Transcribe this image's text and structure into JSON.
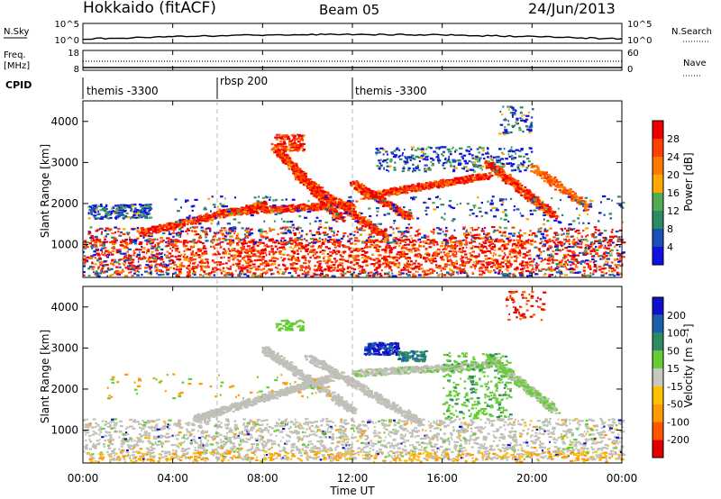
{
  "header": {
    "station": "Hokkaido (fitACF)",
    "beam": "Beam 05",
    "date": "24/Jun/2013"
  },
  "top_panels": {
    "nsky": {
      "label": "N.Sky",
      "ticks": [
        "10^5",
        "10^0"
      ]
    },
    "nsearch": {
      "label": "N.Search",
      "ticks": [
        "10^5",
        "10^0"
      ]
    },
    "freq": {
      "label": "Freq.",
      "unit": "[MHz]",
      "ticks": [
        "18",
        "8"
      ]
    },
    "nave": {
      "label": "Nave",
      "ticks": [
        "60",
        "0"
      ]
    },
    "cpid": {
      "label": "CPID",
      "segments": [
        "themis -3300",
        "rbsp 200",
        "themis -3300"
      ]
    }
  },
  "x_axis": {
    "label": "Time UT",
    "ticks": [
      "00:00",
      "04:00",
      "08:00",
      "12:00",
      "16:00",
      "20:00",
      "00:00"
    ]
  },
  "colors": {
    "power": [
      "#1010e0",
      "#1c50b8",
      "#2e8a63",
      "#52aa52",
      "#ffa800",
      "#ff7a00",
      "#ff4000",
      "#ef0000"
    ],
    "velocity": [
      "#e00000",
      "#ff5500",
      "#ff9a00",
      "#ffc000",
      "#c8c8c0",
      "#66cc33",
      "#2e8a63",
      "#1a5faa",
      "#1010c8"
    ],
    "ground": "#c0c0b8"
  },
  "chart_data": [
    {
      "type": "heatmap",
      "title": "Power",
      "ylabel": "Slant Range [km]",
      "yticks": [
        "1000",
        "2000",
        "3000",
        "4000"
      ],
      "ylim": [
        200,
        4500
      ],
      "xlim_hours": [
        0,
        24
      ],
      "colorbar": {
        "label": "Power [dB]",
        "ticks": [
          "28",
          "24",
          "20",
          "16",
          "12",
          "8",
          "4"
        ],
        "range": [
          0,
          30
        ]
      },
      "features": [
        {
          "name": "near-range",
          "t": [
            0,
            24
          ],
          "r": [
            300,
            1200
          ],
          "value": 22
        },
        {
          "name": "band-a",
          "t": [
            3,
            18
          ],
          "r": [
            1500,
            2500
          ],
          "value": 26
        },
        {
          "name": "arc-1",
          "t": [
            8,
            11
          ],
          "r": [
            1500,
            3300
          ],
          "value": 27
        },
        {
          "name": "arc-2",
          "t": [
            10,
            15
          ],
          "r": [
            1200,
            2600
          ],
          "value": 28
        },
        {
          "name": "arc-3",
          "t": [
            16,
            21
          ],
          "r": [
            1500,
            2800
          ],
          "value": 24
        }
      ]
    },
    {
      "type": "heatmap",
      "title": "Velocity",
      "ylabel": "Slant Range [km]",
      "yticks": [
        "1000",
        "2000",
        "3000",
        "4000"
      ],
      "ylim": [
        200,
        4500
      ],
      "xlim_hours": [
        0,
        24
      ],
      "colorbar": {
        "label": "Velocity [m s⁻¹]",
        "ticks": [
          "200",
          "100",
          "50",
          "15",
          "-15",
          "-50",
          "-100",
          "-200"
        ],
        "range": [
          -250,
          250
        ]
      },
      "features": [
        {
          "name": "ground-scatter",
          "t": [
            0,
            24
          ],
          "r": [
            300,
            2500
          ],
          "value": 0
        },
        {
          "name": "neg-patch",
          "t": [
            12.5,
            14
          ],
          "r": [
            2800,
            3200
          ],
          "value": 180
        },
        {
          "name": "pos-patch",
          "t": [
            16,
            19
          ],
          "r": [
            1200,
            3000
          ],
          "value": 40
        }
      ]
    }
  ]
}
